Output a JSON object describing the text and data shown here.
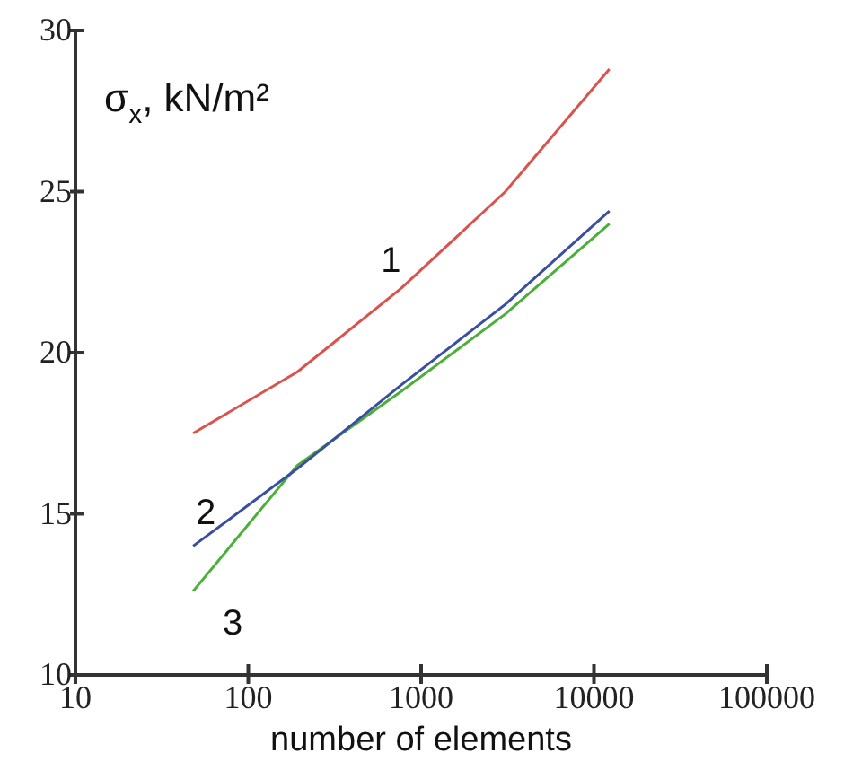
{
  "chart_data": {
    "type": "line",
    "xlabel": "number of elements",
    "ylabel": "σ$_{x}$, kN/m²",
    "x": [
      48,
      192,
      768,
      3072,
      12288
    ],
    "series": [
      {
        "name": "1",
        "color": "#d9534f",
        "values": [
          17.5,
          19.4,
          22.0,
          25.0,
          28.8
        ]
      },
      {
        "name": "2",
        "color": "#3b4fa0",
        "values": [
          14.0,
          16.4,
          19.0,
          21.5,
          24.4
        ]
      },
      {
        "name": "3",
        "color": "#4caf3a",
        "values": [
          12.6,
          16.5,
          18.8,
          21.2,
          24.0
        ]
      }
    ],
    "log": "x",
    "xlim": [
      10,
      100000
    ],
    "ylim": [
      10,
      30
    ],
    "xticks": [
      10,
      100,
      1000,
      10000,
      100000
    ],
    "yticks": [
      10,
      15,
      20,
      25,
      30
    ],
    "grid": false,
    "legend": false,
    "marker": "none",
    "line_style": "solid"
  }
}
